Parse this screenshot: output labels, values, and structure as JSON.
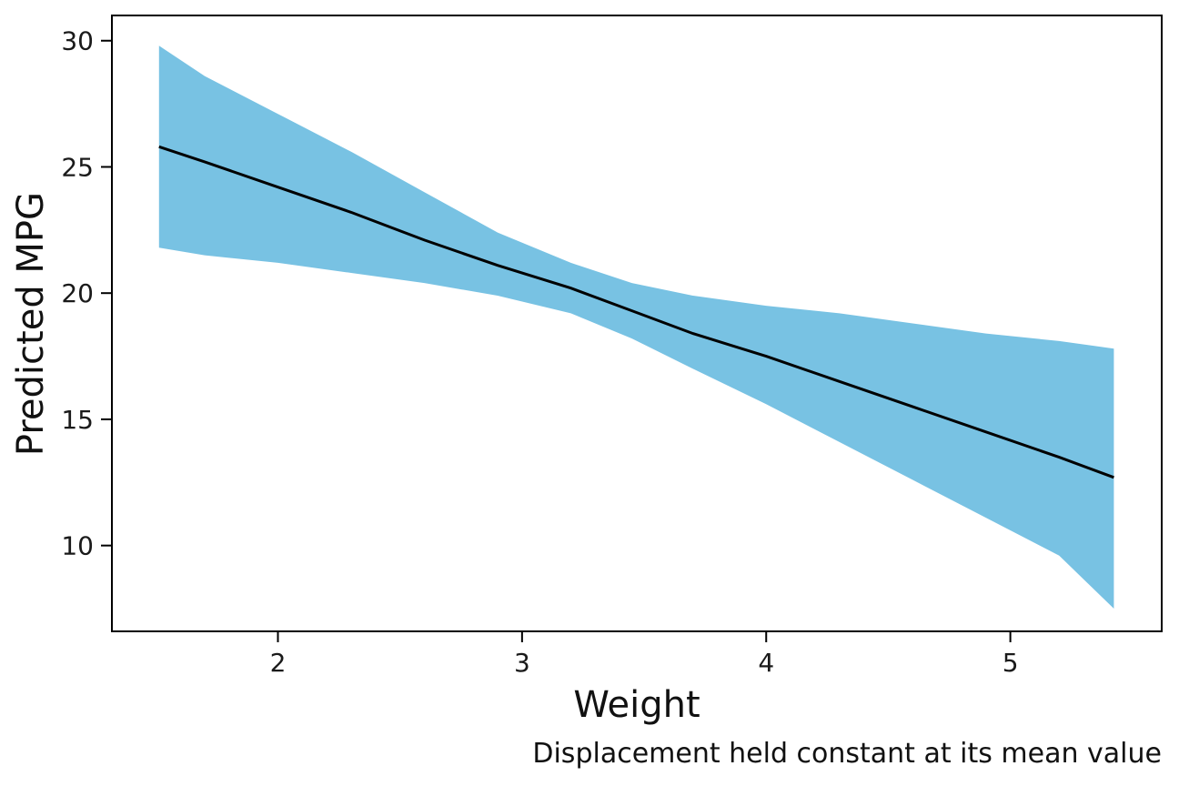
{
  "chart_data": {
    "type": "line",
    "title": "",
    "xlabel": "Weight",
    "ylabel": "Predicted MPG",
    "caption": "Displacement held constant at its mean value",
    "xlim": [
      1.32,
      5.62
    ],
    "ylim": [
      6.6,
      31.0
    ],
    "x_ticks": [
      2,
      3,
      4,
      5
    ],
    "y_ticks": [
      10,
      15,
      20,
      25,
      30
    ],
    "grid": false,
    "legend": "none",
    "colors": {
      "ribbon": "#78c2e3",
      "line": "#000000",
      "axes": "#000000"
    },
    "series": [
      {
        "x": [
          1.513,
          1.7,
          2.0,
          2.3,
          2.6,
          2.9,
          3.2,
          3.45,
          3.7,
          4.0,
          4.3,
          4.6,
          4.9,
          5.2,
          5.424
        ],
        "fit": [
          25.8,
          25.2,
          24.2,
          23.2,
          22.1,
          21.1,
          20.2,
          19.3,
          18.4,
          17.5,
          16.5,
          15.5,
          14.5,
          13.5,
          12.7
        ],
        "lower": [
          21.8,
          21.5,
          21.2,
          20.8,
          20.4,
          19.9,
          19.2,
          18.2,
          17.0,
          15.6,
          14.1,
          12.6,
          11.1,
          9.6,
          7.5
        ],
        "upper": [
          29.8,
          28.6,
          27.1,
          25.6,
          24.0,
          22.4,
          21.2,
          20.4,
          19.9,
          19.5,
          19.2,
          18.8,
          18.4,
          18.1,
          17.8
        ]
      }
    ]
  }
}
